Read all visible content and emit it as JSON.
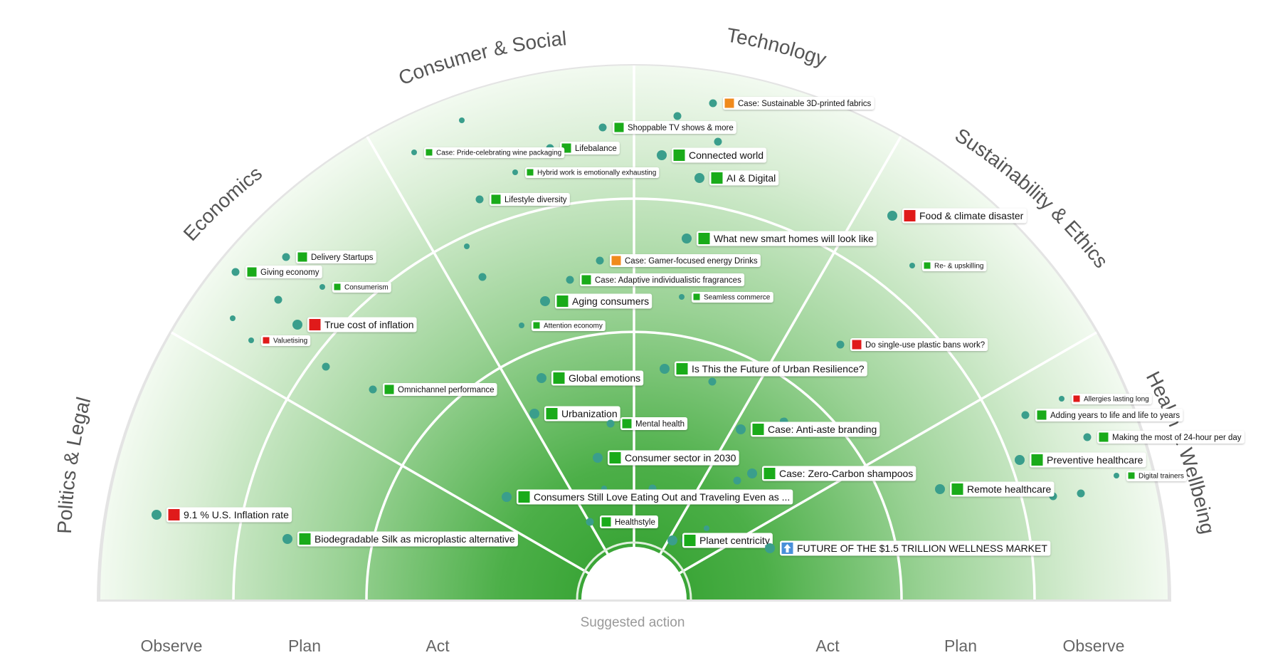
{
  "sectors": [
    {
      "id": "politics",
      "label": "Politics & Legal"
    },
    {
      "id": "economics",
      "label": "Economics"
    },
    {
      "id": "consumer",
      "label": "Consumer & Social"
    },
    {
      "id": "technology",
      "label": "Technology"
    },
    {
      "id": "sustainability",
      "label": "Sustainability & Ethics"
    },
    {
      "id": "health",
      "label": "Health & Wellbeing"
    }
  ],
  "rings_left": [
    "Observe",
    "Plan",
    "Act"
  ],
  "rings_right": [
    "Act",
    "Plan",
    "Observe"
  ],
  "center_caption": "Suggested action",
  "colors": {
    "green": "#1aab1a",
    "red": "#e01a1a",
    "orange": "#f08a1c",
    "blue": "#4a90d9",
    "dot": "#3a9e8c",
    "ring_stroke": "#ffffff",
    "outer_rim": "#e6e6e6"
  },
  "trends": [
    {
      "label": "Case: Sustainable 3D-printed fabrics",
      "status": "orange",
      "size": "s"
    },
    {
      "label": "Shoppable TV shows & more",
      "status": "green",
      "size": "s"
    },
    {
      "label": "Lifebalance",
      "status": "green",
      "size": "s"
    },
    {
      "label": "Case: Pride-celebrating wine packaging",
      "status": "green",
      "size": "xs"
    },
    {
      "label": "Connected world",
      "status": "green",
      "size": "m"
    },
    {
      "label": "Hybrid work is emotionally exhausting",
      "status": "green",
      "size": "xs"
    },
    {
      "label": "AI & Digital",
      "status": "green",
      "size": "m"
    },
    {
      "label": "Lifestyle diversity",
      "status": "green",
      "size": "s"
    },
    {
      "label": "Food & climate disaster",
      "status": "red",
      "size": "m"
    },
    {
      "label": "What new smart homes will look like",
      "status": "green",
      "size": "m"
    },
    {
      "label": "Delivery Startups",
      "status": "green",
      "size": "s"
    },
    {
      "label": "Case: Gamer-focused energy Drinks",
      "status": "orange",
      "size": "s"
    },
    {
      "label": "Giving economy",
      "status": "green",
      "size": "s"
    },
    {
      "label": "Re- & upskilling",
      "status": "green",
      "size": "xs"
    },
    {
      "label": "Case: Adaptive individualistic fragrances",
      "status": "green",
      "size": "s"
    },
    {
      "label": "Consumerism",
      "status": "green",
      "size": "xs"
    },
    {
      "label": "Seamless commerce",
      "status": "green",
      "size": "xs"
    },
    {
      "label": "Aging consumers",
      "status": "green",
      "size": "m"
    },
    {
      "label": "True cost of inflation",
      "status": "red",
      "size": "m"
    },
    {
      "label": "Attention economy",
      "status": "green",
      "size": "xs"
    },
    {
      "label": "Valuetising",
      "status": "red",
      "size": "xs"
    },
    {
      "label": "Do single-use plastic bans work?",
      "status": "red",
      "size": "s"
    },
    {
      "label": "Is This the Future of Urban Resilience?",
      "status": "green",
      "size": "m"
    },
    {
      "label": "Global emotions",
      "status": "green",
      "size": "m"
    },
    {
      "label": "Omnichannel performance",
      "status": "green",
      "size": "s"
    },
    {
      "label": "Allergies lasting long",
      "status": "red",
      "size": "xs"
    },
    {
      "label": "Adding years to life and life to years",
      "status": "green",
      "size": "s"
    },
    {
      "label": "Urbanization",
      "status": "green",
      "size": "m"
    },
    {
      "label": "Mental health",
      "status": "green",
      "size": "s"
    },
    {
      "label": "Case: Anti-aste branding",
      "status": "green",
      "size": "m"
    },
    {
      "label": "Making the most of 24-hour per day",
      "status": "green",
      "size": "s"
    },
    {
      "label": "Consumer sector in 2030",
      "status": "green",
      "size": "m"
    },
    {
      "label": "Preventive healthcare",
      "status": "green",
      "size": "m"
    },
    {
      "label": "Case: Zero-Carbon shampoos",
      "status": "green",
      "size": "m"
    },
    {
      "label": "Digital trainers",
      "status": "green",
      "size": "xs"
    },
    {
      "label": "Remote healthcare",
      "status": "green",
      "size": "m"
    },
    {
      "label": "Consumers Still Love Eating Out and Traveling Even as ...",
      "status": "green",
      "size": "m"
    },
    {
      "label": "9.1 % U.S. Inflation rate",
      "status": "red",
      "size": "m"
    },
    {
      "label": "Healthstyle",
      "status": "green",
      "size": "s"
    },
    {
      "label": "Planet centricity",
      "status": "green",
      "size": "m"
    },
    {
      "label": "Biodegradable Silk as microplastic alternative",
      "status": "green",
      "size": "m"
    },
    {
      "label": "FUTURE OF THE $1.5 TRILLION WELLNESS MARKET",
      "status": "blue",
      "size": "m"
    }
  ]
}
